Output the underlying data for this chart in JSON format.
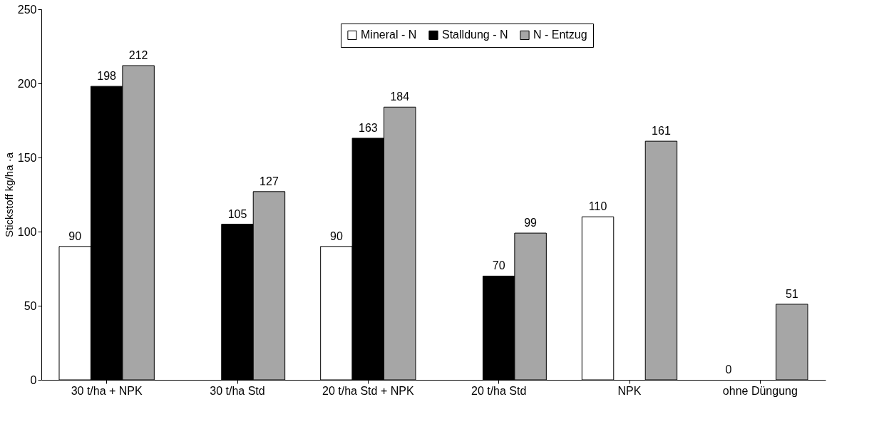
{
  "chart_data": {
    "type": "bar",
    "ylabel": "Stickstoff kg/ha ·a",
    "categories": [
      "30 t/ha + NPK",
      "30 t/ha Std",
      "20 t/ha Std + NPK",
      "20 t/ha Std",
      "NPK",
      "ohne Düngung"
    ],
    "series": [
      {
        "name": "Mineral - N",
        "color": "#ffffff",
        "values": [
          90,
          null,
          90,
          null,
          110,
          0
        ]
      },
      {
        "name": "Stalldung - N",
        "color": "#000000",
        "values": [
          198,
          105,
          163,
          70,
          null,
          null
        ]
      },
      {
        "name": "N - Entzug",
        "color": "#a6a6a6",
        "values": [
          212,
          127,
          184,
          99,
          161,
          51
        ]
      }
    ],
    "ylim": [
      0,
      250
    ],
    "yticks": [
      0,
      50,
      100,
      150,
      200,
      250
    ],
    "grid": false,
    "legend": "top",
    "data_labels": true
  }
}
